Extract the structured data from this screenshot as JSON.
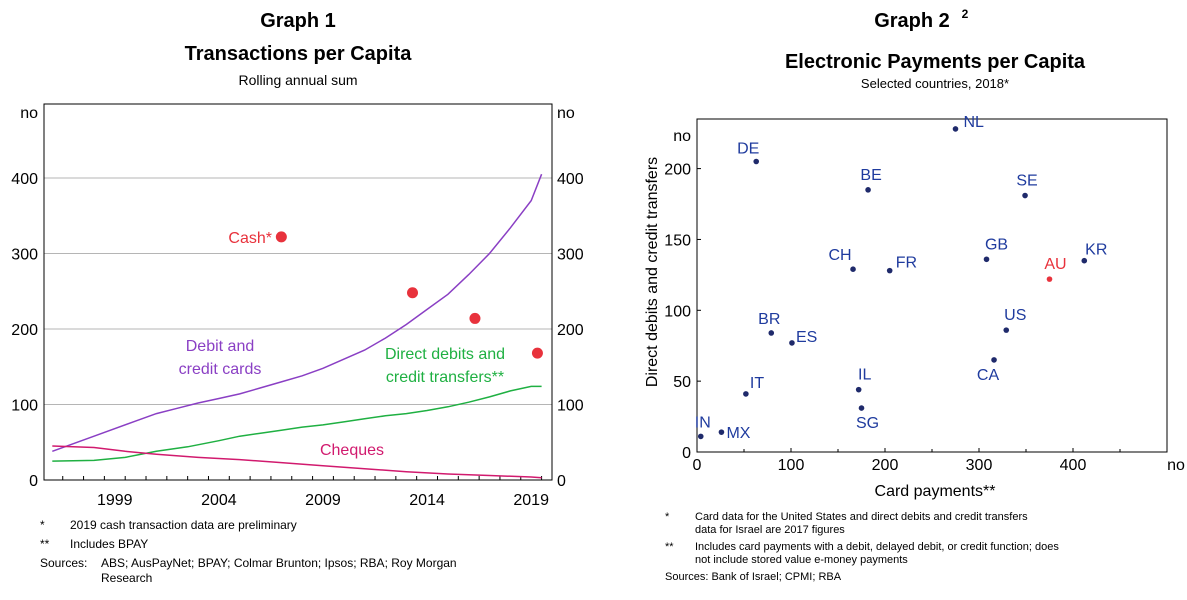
{
  "chart_data": [
    {
      "type": "line",
      "label": "Graph 1",
      "title": "Transactions per Capita",
      "subtitle": "Rolling annual sum",
      "unit_left": "no",
      "unit_right": "no",
      "x_ticks": [
        "1999",
        "2004",
        "2009",
        "2014",
        "2019"
      ],
      "y_ticks": [
        "0",
        "100",
        "200",
        "300",
        "400"
      ],
      "xlim": [
        1995.6,
        2020.0
      ],
      "ylim": [
        0,
        400
      ],
      "grid": true,
      "series": [
        {
          "label": "Debit and credit cards",
          "color": "#8a3fc4",
          "x": [
            1996.0,
            1998.0,
            2000.0,
            2001.0,
            2002.0,
            2003.0,
            2004.0,
            2005.0,
            2006.0,
            2007.0,
            2008.0,
            2009.0,
            2010.0,
            2011.0,
            2012.0,
            2013.0,
            2014.0,
            2015.0,
            2016.0,
            2017.0,
            2018.0,
            2019.0,
            2019.5
          ],
          "y": [
            38,
            58,
            78,
            88,
            95,
            102,
            108,
            114,
            122,
            130,
            138,
            148,
            160,
            172,
            188,
            206,
            226,
            246,
            272,
            300,
            334,
            370,
            405
          ]
        },
        {
          "label": "Direct debits and credit transfers",
          "color": "#1fb042",
          "x": [
            1996.0,
            1998.0,
            1999.5,
            2001.0,
            2002.5,
            2004.0,
            2005.0,
            2006.0,
            2007.0,
            2008.0,
            2009.0,
            2010.0,
            2011.0,
            2012.0,
            2013.0,
            2014.0,
            2015.0,
            2016.0,
            2017.0,
            2018.0,
            2019.0,
            2019.5
          ],
          "y": [
            25,
            26,
            30,
            38,
            44,
            52,
            58,
            62,
            66,
            70,
            73,
            77,
            81,
            85,
            88,
            92,
            97,
            103,
            110,
            118,
            124,
            124
          ]
        },
        {
          "label": "Cheques",
          "color": "#d11a6e",
          "x": [
            1996.0,
            1998.0,
            1999.5,
            2001.0,
            2003.0,
            2005.0,
            2007.0,
            2009.0,
            2011.0,
            2013.0,
            2015.0,
            2017.0,
            2019.0,
            2019.5
          ],
          "y": [
            45,
            43,
            38,
            34,
            30,
            27,
            23,
            19,
            15,
            11,
            8,
            6,
            4,
            3
          ]
        }
      ],
      "points": {
        "label": "Cash*",
        "color": "#e8323c",
        "x": [
          2007.0,
          2013.3,
          2016.3,
          2019.3
        ],
        "y": [
          322,
          248,
          214,
          168
        ]
      },
      "annotations": [
        "Cash*",
        "Debit and",
        "credit cards",
        "Direct debits and",
        "credit transfers**",
        "Cheques"
      ]
    },
    {
      "type": "scatter",
      "label": "Graph 2",
      "label_sup": "2",
      "title": "Electronic Payments per Capita",
      "subtitle": "Selected countries, 2018*",
      "xlabel": "Card payments**",
      "ylabel": "Direct debits and credit transfers",
      "unit_y": "no",
      "unit_x": "no",
      "x_ticks": [
        "0",
        "100",
        "200",
        "300",
        "400"
      ],
      "y_ticks": [
        "0",
        "50",
        "100",
        "150",
        "200"
      ],
      "xlim": [
        0,
        500
      ],
      "ylim": [
        0,
        235
      ],
      "grid": false,
      "points": [
        {
          "label": "NL",
          "x": 275,
          "y": 228
        },
        {
          "label": "DE",
          "x": 63,
          "y": 205
        },
        {
          "label": "BE",
          "x": 182,
          "y": 185
        },
        {
          "label": "SE",
          "x": 349,
          "y": 181
        },
        {
          "label": "GB",
          "x": 308,
          "y": 136
        },
        {
          "label": "KR",
          "x": 412,
          "y": 135
        },
        {
          "label": "CH",
          "x": 166,
          "y": 129
        },
        {
          "label": "FR",
          "x": 205,
          "y": 128
        },
        {
          "label": "AU",
          "x": 375,
          "y": 122,
          "color": "#e8323c"
        },
        {
          "label": "US",
          "x": 329,
          "y": 86
        },
        {
          "label": "BR",
          "x": 79,
          "y": 84
        },
        {
          "label": "ES",
          "x": 101,
          "y": 77
        },
        {
          "label": "CA",
          "x": 316,
          "y": 65
        },
        {
          "label": "IL",
          "x": 172,
          "y": 44
        },
        {
          "label": "IT",
          "x": 52,
          "y": 41
        },
        {
          "label": "SG",
          "x": 175,
          "y": 31
        },
        {
          "label": "MX",
          "x": 26,
          "y": 14
        },
        {
          "label": "IN",
          "x": 4,
          "y": 11
        }
      ]
    }
  ],
  "notes1": [
    {
      "mark": "*",
      "text": "2019 cash transaction data are preliminary"
    },
    {
      "mark": "**",
      "text": "Includes BPAY"
    }
  ],
  "sources1_label": "Sources:",
  "sources1_text": "ABS; AusPayNet; BPAY; Colmar Brunton; Ipsos; RBA; Roy Morgan Research",
  "notes2": [
    {
      "mark": "*",
      "text": "Card data for the United States and direct debits and credit transfers data for Israel are 2017 figures"
    },
    {
      "mark": "**",
      "text": "Includes card payments with a debit, delayed debit, or credit function; does not include stored value e-money payments"
    }
  ],
  "sources2": "Sources: Bank of Israel; CPMI; RBA"
}
